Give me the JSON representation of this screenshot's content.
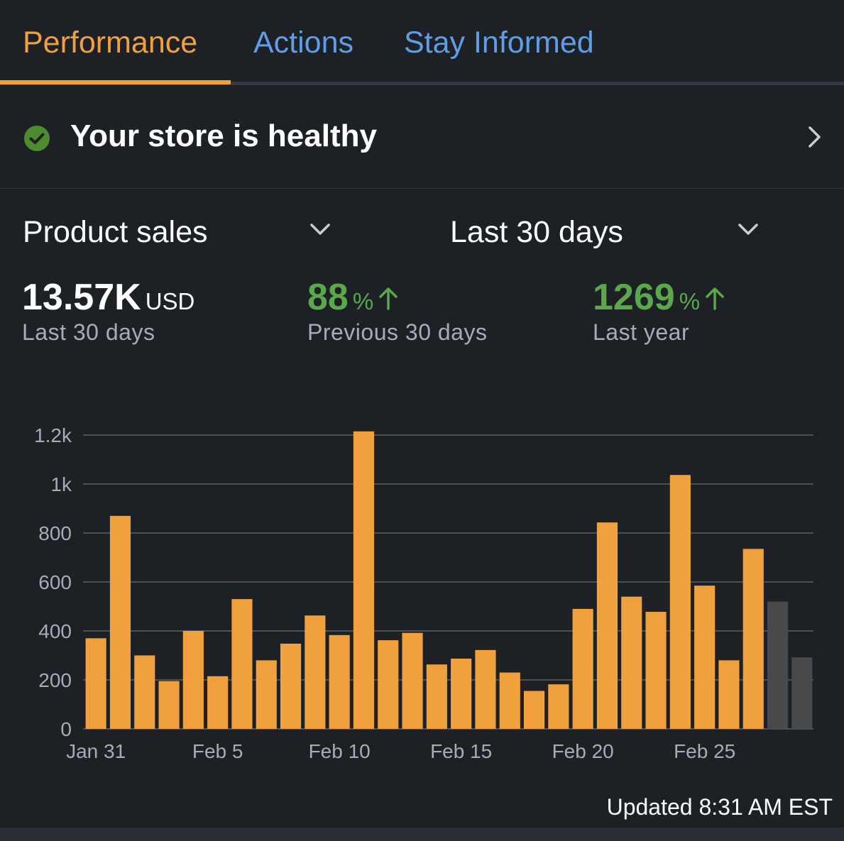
{
  "tabs": [
    {
      "label": "Performance",
      "active": true
    },
    {
      "label": "Actions",
      "active": false
    },
    {
      "label": "Stay Informed",
      "active": false
    }
  ],
  "health": {
    "text": "Your store is healthy",
    "status_icon": "check-circle-icon",
    "chevron_icon": "chevron-right-icon"
  },
  "selectors": {
    "metric": "Product sales",
    "range": "Last 30 days"
  },
  "kpis": [
    {
      "value": "13.57K",
      "unit": "USD",
      "label": "Last 30 days",
      "trend": null
    },
    {
      "value": "88",
      "unit": "%",
      "label": "Previous 30 days",
      "trend": "up"
    },
    {
      "value": "1269",
      "unit": "%",
      "label": "Last year",
      "trend": "up"
    }
  ],
  "colors": {
    "accent": "#f0a03c",
    "link": "#5f9ee6",
    "positive": "#5aa84a",
    "bar": "#f0a03c",
    "bar_pending": "#48494b",
    "background": "#1d2126"
  },
  "chart_data": {
    "type": "bar",
    "title": "",
    "xlabel": "",
    "ylabel": "",
    "ylim": [
      0,
      1200
    ],
    "y_ticks": [
      0,
      200,
      400,
      600,
      800,
      1000,
      1200
    ],
    "y_tick_labels": [
      "0",
      "200",
      "400",
      "600",
      "800",
      "1k",
      "1.2k"
    ],
    "grid": true,
    "categories": [
      "Jan 31",
      "Feb 1",
      "Feb 2",
      "Feb 3",
      "Feb 4",
      "Feb 5",
      "Feb 6",
      "Feb 7",
      "Feb 8",
      "Feb 9",
      "Feb 10",
      "Feb 11",
      "Feb 12",
      "Feb 13",
      "Feb 14",
      "Feb 15",
      "Feb 16",
      "Feb 17",
      "Feb 18",
      "Feb 19",
      "Feb 20",
      "Feb 21",
      "Feb 22",
      "Feb 23",
      "Feb 24",
      "Feb 25",
      "Feb 26",
      "Feb 27",
      "Feb 28",
      "Mar 1"
    ],
    "values": [
      370,
      870,
      300,
      195,
      400,
      215,
      530,
      280,
      348,
      463,
      383,
      1215,
      362,
      392,
      263,
      287,
      322,
      230,
      155,
      182,
      490,
      843,
      540,
      478,
      1037,
      585,
      280,
      735,
      520,
      292
    ],
    "pending": [
      false,
      false,
      false,
      false,
      false,
      false,
      false,
      false,
      false,
      false,
      false,
      false,
      false,
      false,
      false,
      false,
      false,
      false,
      false,
      false,
      false,
      false,
      false,
      false,
      false,
      false,
      false,
      false,
      true,
      true
    ],
    "x_tick_labels": [
      {
        "index": 0,
        "label": "Jan 31"
      },
      {
        "index": 5,
        "label": "Feb 5"
      },
      {
        "index": 10,
        "label": "Feb 10"
      },
      {
        "index": 15,
        "label": "Feb 15"
      },
      {
        "index": 20,
        "label": "Feb 20"
      },
      {
        "index": 25,
        "label": "Feb 25"
      }
    ]
  },
  "footer": {
    "updated": "Updated 8:31 AM EST"
  }
}
